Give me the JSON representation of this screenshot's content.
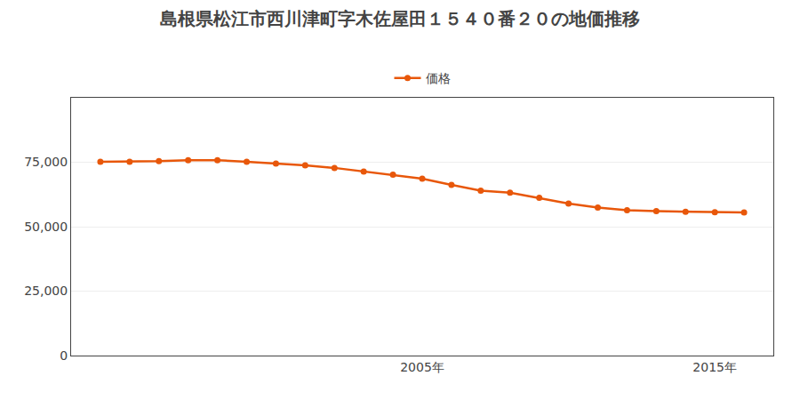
{
  "chart_data": {
    "type": "line",
    "title": "島根県松江市西川津町字木佐屋田１５４０番２０の地価推移",
    "x": [
      1994,
      1995,
      1996,
      1997,
      1998,
      1999,
      2000,
      2001,
      2002,
      2003,
      2004,
      2005,
      2006,
      2007,
      2008,
      2009,
      2010,
      2011,
      2012,
      2013,
      2014,
      2015,
      2016
    ],
    "series": [
      {
        "name": "価格",
        "color": "#e8570a",
        "values": [
          75200,
          75200,
          75400,
          75800,
          75800,
          75200,
          74500,
          73800,
          72800,
          71400,
          70200,
          68600,
          66200,
          64000,
          63200,
          61200,
          59000,
          57400,
          56400,
          56000,
          55800,
          55600,
          55500
        ]
      }
    ],
    "xlim": [
      1993,
      2017
    ],
    "xticks": [
      {
        "value": 2005,
        "label": "2005年"
      },
      {
        "value": 2015,
        "label": "2015年"
      }
    ],
    "ylim": [
      0,
      100000
    ],
    "yticks": [
      0,
      {
        "value": 25000,
        "label": "25,000"
      },
      {
        "value": 50000,
        "label": "50,000"
      },
      {
        "value": 75000,
        "label": "75,000"
      }
    ],
    "grid": "y",
    "marker": "o",
    "legend": "top"
  }
}
